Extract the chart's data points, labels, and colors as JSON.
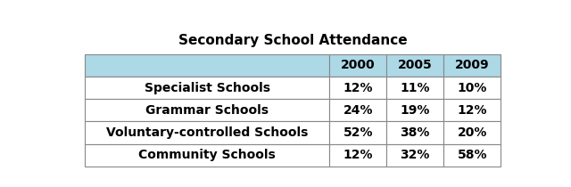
{
  "title": "Secondary School Attendance",
  "col_headers": [
    "2000",
    "2005",
    "2009"
  ],
  "row_labels": [
    "Specialist Schools",
    "Grammar Schools",
    "Voluntary-controlled Schools",
    "Community Schools"
  ],
  "table_data": [
    [
      "12%",
      "11%",
      "10%"
    ],
    [
      "24%",
      "19%",
      "12%"
    ],
    [
      "52%",
      "38%",
      "20%"
    ],
    [
      "12%",
      "32%",
      "58%"
    ]
  ],
  "header_bg": "#ADD8E6",
  "border_color": "#888888",
  "text_color": "#000000",
  "title_fontsize": 11,
  "header_fontsize": 10,
  "cell_fontsize": 10
}
